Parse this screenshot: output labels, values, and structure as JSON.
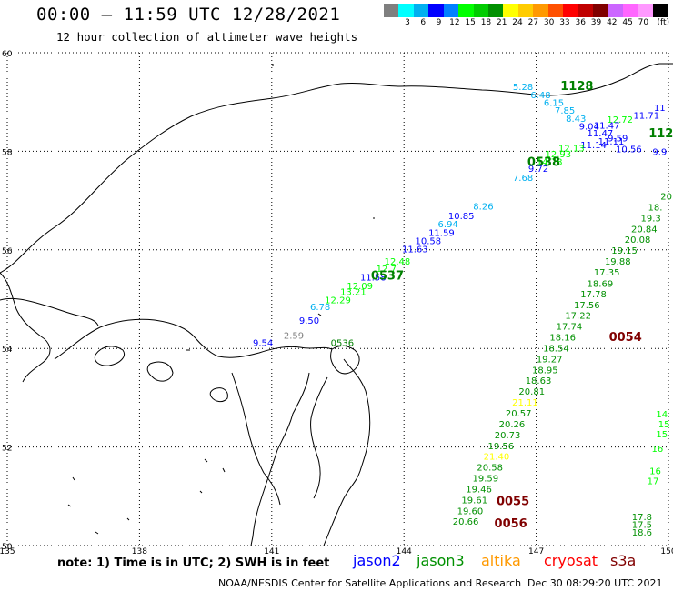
{
  "header": {
    "title": "00:00 – 11:59 UTC 12/28/2021",
    "subtitle": "12 hour collection of altimeter wave heights"
  },
  "legend": {
    "unit": "(ft)",
    "colors": [
      "#7f7f7f",
      "#00ffff",
      "#00b0f0",
      "#0000ff",
      "#0080ff",
      "#00ff00",
      "#00cc00",
      "#009000",
      "#ffff00",
      "#ffcc00",
      "#ff9900",
      "#ff5000",
      "#ff0000",
      "#c00000",
      "#800000",
      "#cc66ff",
      "#ff66ff",
      "#ff99ff",
      "#000000"
    ],
    "labels": [
      "",
      "3",
      "6",
      "9",
      "12",
      "15",
      "18",
      "21",
      "24",
      "27",
      "30",
      "33",
      "36",
      "39",
      "42",
      "45",
      "70",
      ""
    ]
  },
  "axes": {
    "lat_labels": [
      "60",
      "58",
      "56",
      "54",
      "52",
      "50"
    ],
    "lon_labels": [
      "135",
      "138",
      "141",
      "144",
      "147",
      "150"
    ]
  },
  "map_data": {
    "extent": {
      "lon_min": 135,
      "lon_max": 150,
      "lat_min": 50,
      "lat_max": 60
    },
    "tracks": [
      {
        "satellite": "jason3",
        "time_label": "1128",
        "time_color": "#008000",
        "points": [
          {
            "lon": 146.7,
            "lat": 59.24,
            "v": "5.28",
            "c": "#00b0f0"
          },
          {
            "lon": 147.1,
            "lat": 59.08,
            "v": "6.48",
            "c": "#00b0f0"
          },
          {
            "lon": 147.4,
            "lat": 58.92,
            "v": "6.15",
            "c": "#00b0f0"
          },
          {
            "lon": 147.65,
            "lat": 58.76,
            "v": "7.85",
            "c": "#00b0f0"
          },
          {
            "lon": 147.9,
            "lat": 58.6,
            "v": "8.43",
            "c": "#00b0f0"
          },
          {
            "lon": 148.2,
            "lat": 58.44,
            "v": "9.04",
            "c": "#0000ff"
          },
          {
            "lon": 148.45,
            "lat": 58.3,
            "v": "11.47",
            "c": "#0000ff"
          },
          {
            "lon": 148.7,
            "lat": 58.14,
            "v": "11.11",
            "c": "#0000ff"
          },
          {
            "lon": 149.1,
            "lat": 57.98,
            "v": "10.56",
            "c": "#0000ff"
          }
        ]
      },
      {
        "satellite": "jason2",
        "time_label": "",
        "time_color": "#0000ff",
        "points": [
          {
            "lon": 149.8,
            "lat": 58.82,
            "v": "11",
            "c": "#0000ff"
          },
          {
            "lon": 149.5,
            "lat": 58.66,
            "v": "11.71",
            "c": "#0000ff"
          },
          {
            "lon": 148.9,
            "lat": 58.58,
            "v": "12.72",
            "c": "#00ff00"
          },
          {
            "lon": 148.6,
            "lat": 58.46,
            "v": "11.47",
            "c": "#0000ff"
          },
          {
            "lon": 148.85,
            "lat": 58.2,
            "v": "9.59",
            "c": "#0000ff"
          },
          {
            "lon": 148.3,
            "lat": 58.06,
            "v": "11.14",
            "c": "#0000ff"
          },
          {
            "lon": 149.8,
            "lat": 57.92,
            "v": "9.9",
            "c": "#0000ff"
          }
        ]
      },
      {
        "satellite": "jason3",
        "time_label": "0538",
        "time_color": "#008000",
        "points": [
          {
            "lon": 147.8,
            "lat": 58.0,
            "v": "12.13",
            "c": "#00ff00"
          },
          {
            "lon": 147.5,
            "lat": 57.88,
            "v": "12.93",
            "c": "#00ff00"
          },
          {
            "lon": 147.3,
            "lat": 57.72,
            "v": "14.78",
            "c": "#00ff00"
          },
          {
            "lon": 147.05,
            "lat": 57.58,
            "v": "9.72",
            "c": "#0000ff"
          },
          {
            "lon": 146.7,
            "lat": 57.4,
            "v": "7.68",
            "c": "#00b0f0"
          }
        ]
      },
      {
        "satellite": "jason2",
        "time_label": "0537",
        "time_color": "#008000",
        "points": [
          {
            "lon": 145.8,
            "lat": 56.82,
            "v": "8.26",
            "c": "#00b0f0"
          },
          {
            "lon": 145.3,
            "lat": 56.62,
            "v": "10.85",
            "c": "#0000ff"
          },
          {
            "lon": 145.0,
            "lat": 56.46,
            "v": "6.94",
            "c": "#00b0f0"
          },
          {
            "lon": 144.85,
            "lat": 56.28,
            "v": "11.59",
            "c": "#0000ff"
          },
          {
            "lon": 144.55,
            "lat": 56.12,
            "v": "10.58",
            "c": "#0000ff"
          },
          {
            "lon": 144.25,
            "lat": 55.95,
            "v": "11.63",
            "c": "#0000ff"
          },
          {
            "lon": 143.85,
            "lat": 55.7,
            "v": "12.48",
            "c": "#00ff00"
          },
          {
            "lon": 143.6,
            "lat": 55.55,
            "v": "12.7",
            "c": "#00ff00"
          },
          {
            "lon": 143.3,
            "lat": 55.38,
            "v": "11.58",
            "c": "#0000ff"
          },
          {
            "lon": 143.0,
            "lat": 55.2,
            "v": "12.09",
            "c": "#00ff00"
          },
          {
            "lon": 142.85,
            "lat": 55.08,
            "v": "13.21",
            "c": "#00ff00"
          },
          {
            "lon": 142.5,
            "lat": 54.92,
            "v": "12.29",
            "c": "#00ff00"
          },
          {
            "lon": 142.1,
            "lat": 54.78,
            "v": "6.78",
            "c": "#00b0f0"
          },
          {
            "lon": 141.85,
            "lat": 54.5,
            "v": "9.50",
            "c": "#0000ff"
          },
          {
            "lon": 141.5,
            "lat": 54.2,
            "v": "2.59",
            "c": "#7f7f7f"
          },
          {
            "lon": 140.8,
            "lat": 54.05,
            "v": "9.54",
            "c": "#0000ff"
          },
          {
            "lon": 142.6,
            "lat": 54.05,
            "v": "0536",
            "c": "#008000"
          }
        ]
      },
      {
        "satellite": "jason3",
        "time_label": "0054",
        "time_color": "#800000",
        "points": [
          {
            "lon": 149.95,
            "lat": 57.02,
            "v": "20",
            "c": "#009000"
          },
          {
            "lon": 149.7,
            "lat": 56.8,
            "v": "18.",
            "c": "#009000"
          },
          {
            "lon": 149.6,
            "lat": 56.58,
            "v": "19.3",
            "c": "#009000"
          },
          {
            "lon": 149.45,
            "lat": 56.36,
            "v": "20.84",
            "c": "#009000"
          },
          {
            "lon": 149.3,
            "lat": 56.14,
            "v": "20.08",
            "c": "#009000"
          },
          {
            "lon": 149.0,
            "lat": 55.92,
            "v": "19.15",
            "c": "#009000"
          },
          {
            "lon": 148.85,
            "lat": 55.7,
            "v": "19.88",
            "c": "#009000"
          },
          {
            "lon": 148.6,
            "lat": 55.48,
            "v": "17.35",
            "c": "#009000"
          },
          {
            "lon": 148.45,
            "lat": 55.25,
            "v": "18.69",
            "c": "#009000"
          },
          {
            "lon": 148.3,
            "lat": 55.04,
            "v": "17.78",
            "c": "#009000"
          },
          {
            "lon": 148.15,
            "lat": 54.82,
            "v": "17.56",
            "c": "#009000"
          },
          {
            "lon": 147.95,
            "lat": 54.6,
            "v": "17.22",
            "c": "#009000"
          },
          {
            "lon": 147.75,
            "lat": 54.38,
            "v": "17.74",
            "c": "#009000"
          },
          {
            "lon": 147.6,
            "lat": 54.16,
            "v": "18.16",
            "c": "#009000"
          },
          {
            "lon": 147.45,
            "lat": 53.94,
            "v": "18.54",
            "c": "#009000"
          },
          {
            "lon": 147.3,
            "lat": 53.72,
            "v": "19.27",
            "c": "#009000"
          },
          {
            "lon": 147.2,
            "lat": 53.5,
            "v": "18.95",
            "c": "#009000"
          },
          {
            "lon": 147.05,
            "lat": 53.28,
            "v": "18.63",
            "c": "#009000"
          },
          {
            "lon": 146.9,
            "lat": 53.06,
            "v": "20.81",
            "c": "#009000"
          },
          {
            "lon": 146.75,
            "lat": 52.84,
            "v": "21.11",
            "c": "#ffff00"
          },
          {
            "lon": 146.6,
            "lat": 52.62,
            "v": "20.57",
            "c": "#009000"
          },
          {
            "lon": 146.45,
            "lat": 52.4,
            "v": "20.26",
            "c": "#009000"
          },
          {
            "lon": 146.35,
            "lat": 52.18,
            "v": "20.73",
            "c": "#009000"
          },
          {
            "lon": 146.2,
            "lat": 51.96,
            "v": "19.56",
            "c": "#009000"
          },
          {
            "lon": 146.1,
            "lat": 51.74,
            "v": "21.40",
            "c": "#ffff00"
          },
          {
            "lon": 145.95,
            "lat": 51.52,
            "v": "20.58",
            "c": "#009000"
          },
          {
            "lon": 145.85,
            "lat": 51.3,
            "v": "19.59",
            "c": "#009000"
          },
          {
            "lon": 145.7,
            "lat": 51.08,
            "v": "19.46",
            "c": "#009000"
          },
          {
            "lon": 145.6,
            "lat": 50.86,
            "v": "19.61",
            "c": "#009000"
          },
          {
            "lon": 145.5,
            "lat": 50.64,
            "v": "19.60",
            "c": "#009000"
          },
          {
            "lon": 145.4,
            "lat": 50.42,
            "v": "20.66",
            "c": "#009000"
          }
        ]
      },
      {
        "satellite": "jason3",
        "time_label": "",
        "time_color": "#009000",
        "points": [
          {
            "lon": 149.85,
            "lat": 52.6,
            "v": "14",
            "c": "#00ff00"
          },
          {
            "lon": 149.9,
            "lat": 52.4,
            "v": "15",
            "c": "#00ff00"
          },
          {
            "lon": 149.85,
            "lat": 52.2,
            "v": "15",
            "c": "#00ff00"
          },
          {
            "lon": 149.75,
            "lat": 51.9,
            "v": "16",
            "c": "#00ff00"
          },
          {
            "lon": 149.7,
            "lat": 51.45,
            "v": "16",
            "c": "#00ff00"
          },
          {
            "lon": 149.65,
            "lat": 51.25,
            "v": "17",
            "c": "#00ff00"
          },
          {
            "lon": 149.4,
            "lat": 50.52,
            "v": "17.8",
            "c": "#009000"
          },
          {
            "lon": 149.4,
            "lat": 50.36,
            "v": "17.5",
            "c": "#009000"
          },
          {
            "lon": 149.4,
            "lat": 50.2,
            "v": "18.6",
            "c": "#009000"
          }
        ]
      }
    ],
    "time_stamps": [
      {
        "text": "1128",
        "lon": 147.55,
        "lat": 59.24,
        "c": "#008000"
      },
      {
        "text": "112",
        "lon": 149.55,
        "lat": 58.28,
        "c": "#008000"
      },
      {
        "text": "0538",
        "lon": 146.8,
        "lat": 57.7,
        "c": "#008000"
      },
      {
        "text": "0537",
        "lon": 143.25,
        "lat": 55.4,
        "c": "#008000"
      },
      {
        "text": "0054",
        "lon": 148.65,
        "lat": 54.15,
        "c": "#800000"
      },
      {
        "text": "0055",
        "lon": 146.1,
        "lat": 50.82,
        "c": "#800000"
      },
      {
        "text": "0056",
        "lon": 146.05,
        "lat": 50.37,
        "c": "#800000"
      }
    ]
  },
  "footer": {
    "note": "note:  1) Time is in UTC;  2) SWH is in feet",
    "satellites": [
      {
        "name": "jason2",
        "color": "#0000ff"
      },
      {
        "name": "jason3",
        "color": "#009000"
      },
      {
        "name": "altika",
        "color": "#ff9900"
      },
      {
        "name": "cryosat",
        "color": "#ff0000"
      },
      {
        "name": "s3a",
        "color": "#800000"
      }
    ],
    "credit": "NOAA/NESDIS Center for Satellite Applications and Research",
    "timestamp": "Dec 30 08:29:20 UTC 2021"
  }
}
